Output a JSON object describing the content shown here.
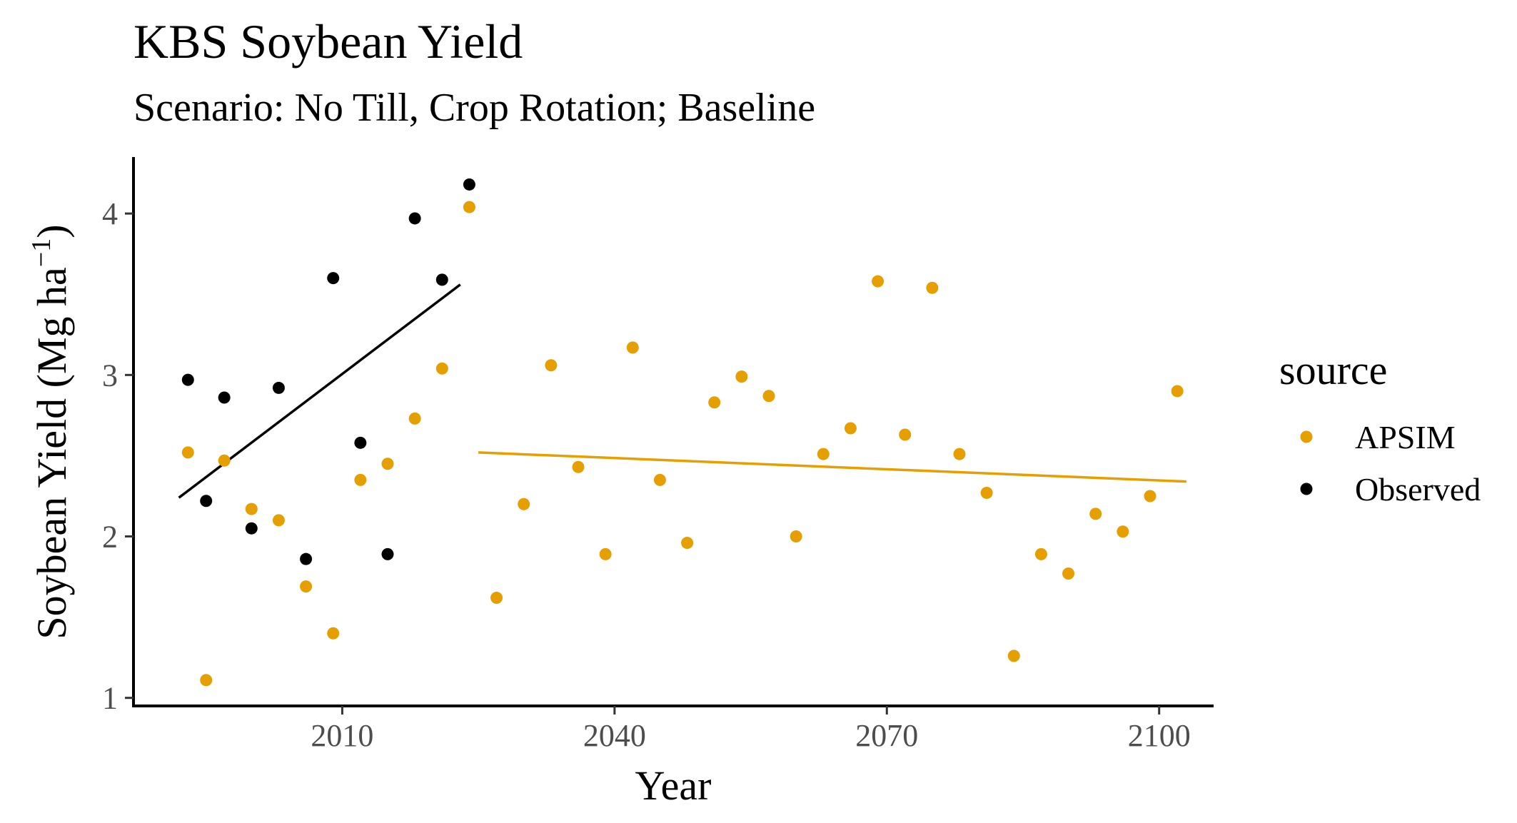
{
  "chart_data": {
    "type": "scatter",
    "title": "KBS Soybean Yield",
    "subtitle": "Scenario: No Till, Crop Rotation; Baseline",
    "xlabel": "Year",
    "ylabel": "Soybean Yield (Mg ha",
    "ylabel_sup": "−1",
    "ylabel_close": ")",
    "xlim": [
      1987,
      2106
    ],
    "ylim": [
      0.95,
      4.35
    ],
    "x_ticks": [
      2010,
      2040,
      2070,
      2100
    ],
    "y_ticks": [
      1,
      2,
      3,
      4
    ],
    "grid": false,
    "legend": {
      "title": "source",
      "position": "right"
    },
    "series": [
      {
        "name": "APSIM",
        "color": "#E69F00",
        "points": [
          [
            1993,
            2.52
          ],
          [
            1995,
            1.11
          ],
          [
            1997,
            2.47
          ],
          [
            2000,
            2.17
          ],
          [
            2003,
            2.1
          ],
          [
            2006,
            1.69
          ],
          [
            2009,
            1.4
          ],
          [
            2012,
            2.35
          ],
          [
            2015,
            2.45
          ],
          [
            2018,
            2.73
          ],
          [
            2021,
            3.04
          ],
          [
            2024,
            4.04
          ],
          [
            2027,
            1.62
          ],
          [
            2030,
            2.2
          ],
          [
            2033,
            3.06
          ],
          [
            2036,
            2.43
          ],
          [
            2039,
            1.89
          ],
          [
            2042,
            3.17
          ],
          [
            2045,
            2.35
          ],
          [
            2048,
            1.96
          ],
          [
            2051,
            2.83
          ],
          [
            2054,
            2.99
          ],
          [
            2057,
            2.87
          ],
          [
            2060,
            2.0
          ],
          [
            2063,
            2.51
          ],
          [
            2066,
            2.67
          ],
          [
            2069,
            3.58
          ],
          [
            2072,
            2.63
          ],
          [
            2075,
            3.54
          ],
          [
            2078,
            2.51
          ],
          [
            2081,
            2.27
          ],
          [
            2084,
            1.26
          ],
          [
            2087,
            1.89
          ],
          [
            2090,
            1.77
          ],
          [
            2093,
            2.14
          ],
          [
            2096,
            2.03
          ],
          [
            2099,
            2.25
          ],
          [
            2102,
            2.9
          ]
        ],
        "trend": [
          [
            2025,
            2.52
          ],
          [
            2103,
            2.34
          ]
        ]
      },
      {
        "name": "Observed",
        "color": "#000000",
        "points": [
          [
            1993,
            2.97
          ],
          [
            1995,
            2.22
          ],
          [
            1997,
            2.86
          ],
          [
            2000,
            2.05
          ],
          [
            2003,
            2.92
          ],
          [
            2006,
            1.86
          ],
          [
            2009,
            3.6
          ],
          [
            2012,
            2.58
          ],
          [
            2015,
            1.89
          ],
          [
            2018,
            3.97
          ],
          [
            2021,
            3.59
          ],
          [
            2024,
            4.18
          ]
        ],
        "trend": [
          [
            1992,
            2.24
          ],
          [
            2023,
            3.56
          ]
        ]
      }
    ]
  }
}
